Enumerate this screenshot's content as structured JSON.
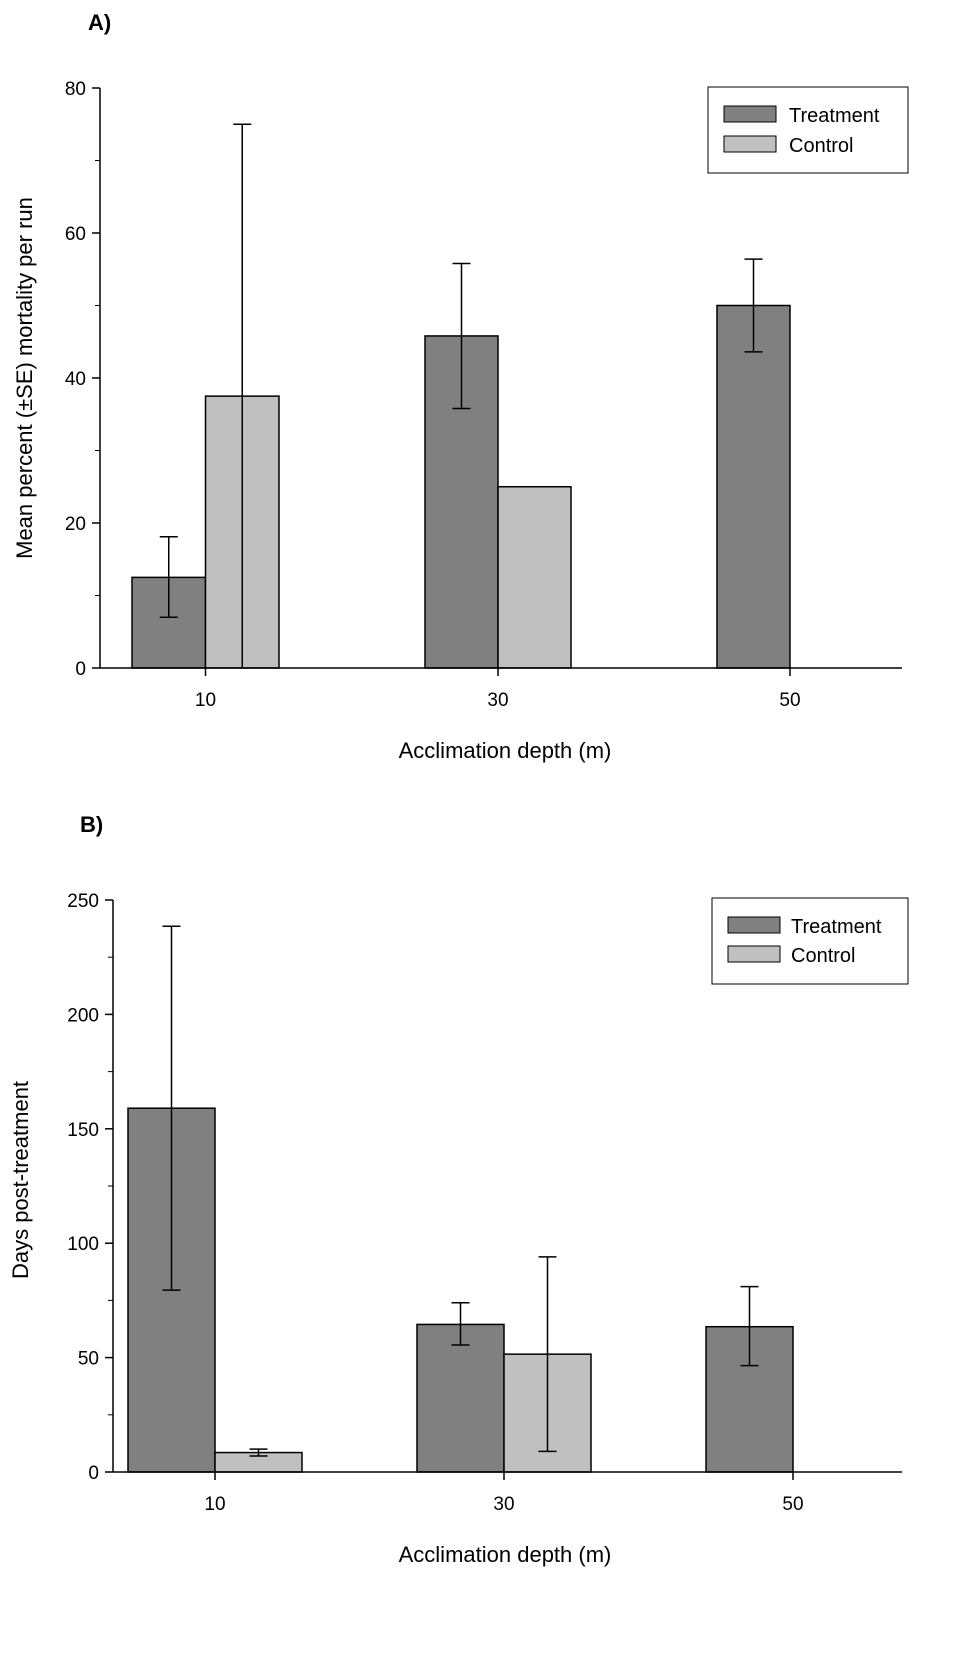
{
  "chart_data": [
    {
      "panel_label": "A)",
      "type": "bar",
      "categories": [
        "10",
        "30",
        "50"
      ],
      "xlabel": "Acclimation depth (m)",
      "ylabel": "Mean percent (±SE) mortality per run",
      "ylim": [
        0,
        80
      ],
      "yticks": [
        "0",
        "20",
        "40",
        "60",
        "80"
      ],
      "grid": false,
      "legend_position": "top-right",
      "series": [
        {
          "name": "Treatment",
          "color": "#808080",
          "values": [
            12.5,
            45.8,
            50.0
          ],
          "err_low": [
            7.0,
            35.8,
            43.6
          ],
          "err_high": [
            18.1,
            55.8,
            56.4
          ]
        },
        {
          "name": "Control",
          "color": "#c0c0c0",
          "values": [
            37.5,
            25.0,
            null
          ],
          "err_low": [
            0,
            null,
            null
          ],
          "err_high": [
            75.0,
            null,
            null
          ]
        }
      ]
    },
    {
      "panel_label": "B)",
      "type": "bar",
      "categories": [
        "10",
        "30",
        "50"
      ],
      "xlabel": "Acclimation depth (m)",
      "ylabel": "Days post-treatment",
      "ylim": [
        0,
        250
      ],
      "yticks": [
        "0",
        "50",
        "100",
        "150",
        "200",
        "250"
      ],
      "grid": false,
      "legend_position": "top-right",
      "series": [
        {
          "name": "Treatment",
          "color": "#808080",
          "values": [
            159,
            64.5,
            63.5
          ],
          "err_low": [
            79.5,
            55.5,
            46.5
          ],
          "err_high": [
            238.5,
            74.0,
            81.0
          ]
        },
        {
          "name": "Control",
          "color": "#c0c0c0",
          "values": [
            8.5,
            51.5,
            null
          ],
          "err_low": [
            7.0,
            9.0,
            null
          ],
          "err_high": [
            10.0,
            94.0,
            null
          ]
        }
      ]
    }
  ]
}
